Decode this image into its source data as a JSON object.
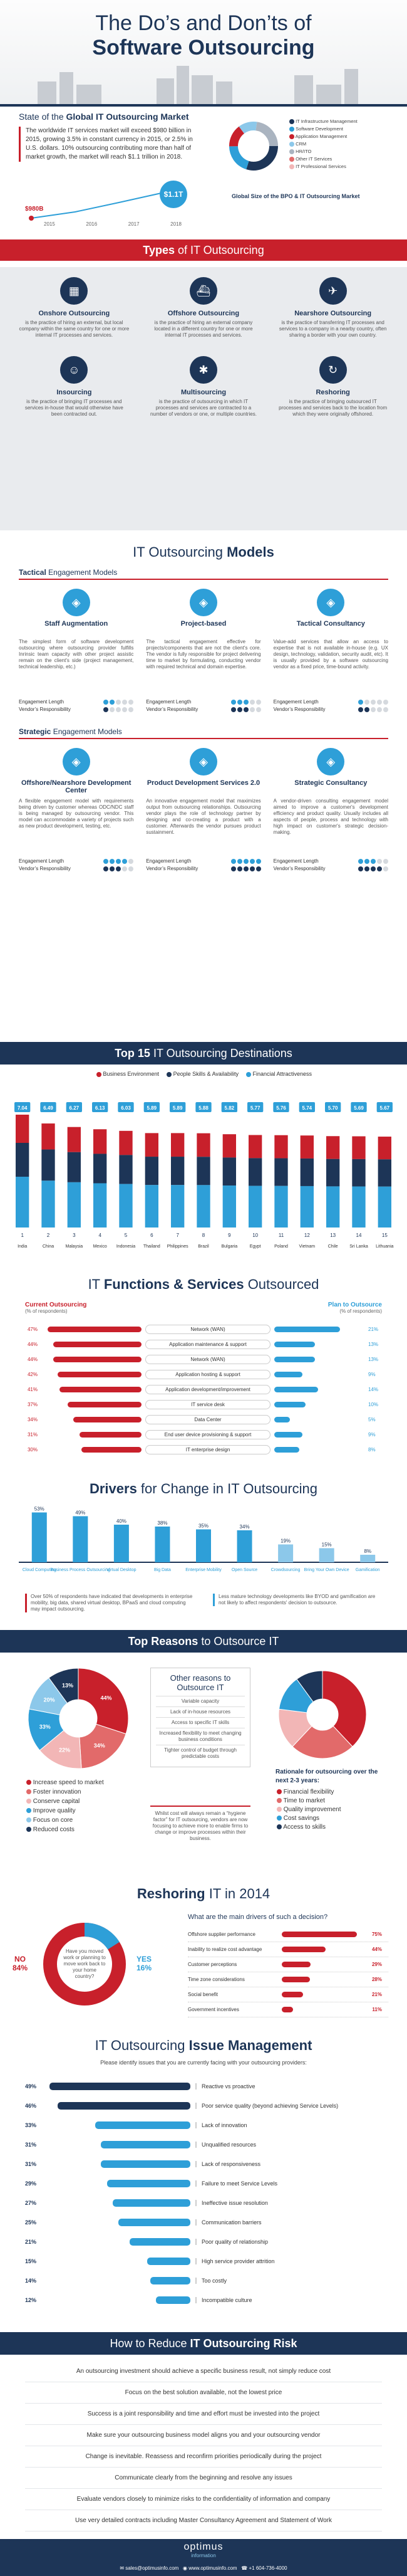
{
  "colors": {
    "red": "#c8202b",
    "navy": "#1d3557",
    "blue": "#2e9fd8",
    "grey": "#e9ebee"
  },
  "header": {
    "title_line1": "The Do’s and Don’ts of",
    "title_line2": "Software Outsourcing"
  },
  "market": {
    "title_pre": "State of the ",
    "title_bold": "Global IT Outsourcing Market",
    "text": "The worldwide IT services market will exceed $980 billion in 2015, growing 3.5% in constant currency in 2015, or 2.5% in U.S. dollars. 10% outsourcing contributing more than half of market growth, the market will reach $1.1 trillion in 2018.",
    "badge_big": "$1.1T",
    "badge_small": "$980B",
    "years": [
      "2015",
      "2016",
      "2017",
      "2018"
    ],
    "legend": [
      "IT Infrastructure Management",
      "Software Development",
      "Application Management",
      "CRM",
      "HR/ITO",
      "Other IT Services",
      "IT Professional Services"
    ],
    "legend_caption": "Global Size of the BPO & IT Outsourcing Market"
  },
  "types": {
    "title_bold": "Types",
    "title_rest": " of IT Outsourcing",
    "items": [
      {
        "name": "Onshore Outsourcing",
        "icon": "building-icon",
        "text": "is the practice of hiring an external, but local company within the same country for one or more internal IT processes and services."
      },
      {
        "name": "Offshore Outsourcing",
        "icon": "ship-icon",
        "text": "is the practice of hiring an external company located in a different country for one or more internal IT processes and services."
      },
      {
        "name": "Nearshore Outsourcing",
        "icon": "plane-icon",
        "text": "is the practice of transferring IT processes and services to a company in a nearby country, often sharing a border with your own country."
      },
      {
        "name": "Insourcing",
        "icon": "people-icon",
        "text": "is the practice of bringing IT processes and services in-house that would otherwise have been contracted out."
      },
      {
        "name": "Multisourcing",
        "icon": "network-icon",
        "text": "is the practice of outsourcing in which IT processes and services are contracted to a number of vendors or one, or multiple countries."
      },
      {
        "name": "Reshoring",
        "icon": "cycle-icon",
        "text": "is the practice of bringing outsourced IT processes and services back to the location from which they were originally offshored."
      }
    ]
  },
  "models": {
    "title_pre": "IT Outsourcing ",
    "title_bold": "Models",
    "tactical_label_bold": "Tactical",
    "tactical_label_rest": " Engagement Models",
    "strategic_label_bold": "Strategic",
    "strategic_label_rest": " Engagement Models",
    "eng_length": "Engagement Length",
    "vendor_resp": "Vendor’s Responsibility",
    "tactical": [
      {
        "name": "Staff Augmentation",
        "text": "The simplest form of software development outsourcing where outsourcing provider fulfills Inrinsic team capacity with other project assistic remain on the client's side (project management, technical leadership, etc.)",
        "len": 2,
        "resp": 1
      },
      {
        "name": "Project-based",
        "text": "The tactical engagement effective for projects/components that are not the client's core. The vendor is fully responsible for project delivering time to market by formulating, conducting vendor with required technical and domain expertise.",
        "len": 3,
        "resp": 3
      },
      {
        "name": "Tactical Consultancy",
        "text": "Value-add services that allow an access to expertise that is not available in-house (e.g. UX design, technology, validation, security audit, etc). It is usually provided by a software outsourcing vendor as a fixed price, time-bound activity.",
        "len": 1,
        "resp": 2
      }
    ],
    "strategic": [
      {
        "name": "Offshore/Nearshore Development Center",
        "text": "A flexible engagement model with requirements being driven by customer whereas ODC/NDC staff is being managed by outsourcing vendor. This model can accommodate a variety of projects such as new product development, testing, etc.",
        "len": 4,
        "resp": 3
      },
      {
        "name": "Product Development Services 2.0",
        "text": "An innovative engagement model that maximizes output from outsourcing relationships. Outsourcing vendor plays the role of technology partner by designing and co-creating a product with a customer. Afterwards the vendor pursues product sustainment.",
        "len": 5,
        "resp": 5
      },
      {
        "name": "Strategic Consultancy",
        "text": "A vendor-driven consulting engagement model aimed to improve a customer's development efficiency and product quality. Usually includes all aspects of people, process and technology with high impact on customer's strategic decision-making.",
        "len": 3,
        "resp": 4
      }
    ]
  },
  "destinations": {
    "title_bold": "Top 15",
    "title_rest": " IT Outsourcing Destinations",
    "legend": [
      "Business Environment",
      "People Skills & Availability",
      "Financial Attractiveness"
    ],
    "countries": [
      "India",
      "China",
      "Malaysia",
      "Mexico",
      "Indonesia",
      "Thailand",
      "Philippines",
      "Brazil",
      "Bulgaria",
      "Egypt",
      "Poland",
      "Vietnam",
      "Chile",
      "Sri Lanka",
      "Lithuania"
    ],
    "totals": [
      "7.04",
      "6.49",
      "6.27",
      "6.13",
      "6.03",
      "5.89",
      "5.89",
      "5.88",
      "5.82",
      "5.77",
      "5.76",
      "5.74",
      "5.70",
      "5.69",
      "5.67"
    ],
    "ranks": [
      "1",
      "2",
      "3",
      "4",
      "5",
      "6",
      "7",
      "8",
      "9",
      "10",
      "11",
      "12",
      "13",
      "14",
      "15"
    ]
  },
  "functions": {
    "title_pre": "IT ",
    "title_bold": "Functions & Services",
    "title_rest": " Outsourced",
    "left_head": "Current Outsourcing",
    "left_sub": "(% of respondents)",
    "right_head": "Plan to Outsource",
    "right_sub": "(% of respondents)",
    "items": [
      {
        "name": "Network (WAN)",
        "cur": 47,
        "plan": 21
      },
      {
        "name": "Application maintenance & support",
        "cur": 44,
        "plan": 13
      },
      {
        "name": "Network (WAN)",
        "cur": 44,
        "plan": 13
      },
      {
        "name": "Application hosting & support",
        "cur": 42,
        "plan": 9
      },
      {
        "name": "Application development/improvement",
        "cur": 41,
        "plan": 14
      },
      {
        "name": "IT service desk",
        "cur": 37,
        "plan": 10
      },
      {
        "name": "Data Center",
        "cur": 34,
        "plan": 5
      },
      {
        "name": "End user device provisioning & support",
        "cur": 31,
        "plan": 9
      },
      {
        "name": "IT enterprise design",
        "cur": 30,
        "plan": 8
      }
    ]
  },
  "drivers": {
    "title_bold": "Drivers",
    "title_rest": " for Change in IT Outsourcing",
    "labels": [
      "Cloud Computing",
      "Business Process Outsourcing",
      "Virtual Desktop",
      "Big Data",
      "Enterprise Mobility",
      "Open Source",
      "Crowdsourcing",
      "Bring Your Own Device",
      "Gamification"
    ],
    "values": [
      53,
      49,
      40,
      38,
      35,
      34,
      19,
      15,
      8
    ],
    "note_left": "Over 50% of respondents have indicated that developments in enterprise mobility, big data, shared virtual desktop, BPaaS and cloud computing may impact outsourcing.",
    "note_right": "Less mature technology developments like BYOD and gamification are not likely to affect respondents' decision to outsource."
  },
  "reasons": {
    "title_bold": "Top Reasons",
    "title_rest": " to Outsource IT",
    "legend": [
      "Increase speed to market",
      "Foster innovation",
      "Conserve capital",
      "Improve quality",
      "Focus on core",
      "Reduced costs"
    ],
    "pie_left": [
      {
        "v": 30,
        "c": "#c8202b"
      },
      {
        "v": 19,
        "c": "#e26a6a"
      },
      {
        "v": 15,
        "c": "#f2b6b6"
      },
      {
        "v": 14,
        "c": "#2e9fd8"
      },
      {
        "v": 12,
        "c": "#8cc8ea"
      },
      {
        "v": 10,
        "c": "#1d3557"
      }
    ],
    "pie_left_labels": [
      "44%",
      "34%",
      "22%",
      "33%",
      "20%",
      "13%"
    ],
    "other_title": "Other reasons to Outsource IT",
    "other_items": [
      "Variable capacity",
      "Lack of in-house resources",
      "Access to specific IT skills",
      "Increased flexibility to meet changing business conditions",
      "Tighter control of budget through predictable costs"
    ],
    "quote": "Whilst cost will always remain a “hygiene factor” for IT outsourcing, vendors are now focusing to achieve more to enable firms to change or improve processes within their business.",
    "pie_right": [
      {
        "v": 38,
        "c": "#c8202b"
      },
      {
        "v": 24,
        "c": "#e26a6a"
      },
      {
        "v": 15,
        "c": "#f2b6b6"
      },
      {
        "v": 13,
        "c": "#2e9fd8"
      },
      {
        "v": 10,
        "c": "#1d3557"
      }
    ],
    "right_caption": "Rationale for outsourcing over the next 2-3 years:",
    "right_legend": [
      "Financial flexibility",
      "Time to market",
      "Quality improvement",
      "Cost savings",
      "Access to skills"
    ]
  },
  "reshoring": {
    "title_bold": "Reshoring",
    "title_rest": " IT in 2014",
    "no_label": "NO",
    "no_value": "84%",
    "yes_label": "YES",
    "yes_value": "16%",
    "center_text": "Have you moved work or planning to move work back to your home country?",
    "drivers_title": "What are the main drivers of such a decision?",
    "drivers": [
      {
        "name": "Offshore supplier performance",
        "v": 75
      },
      {
        "name": "Inability to realize cost advantage",
        "v": 44
      },
      {
        "name": "Customer perceptions",
        "v": 29
      },
      {
        "name": "Time zone considerations",
        "v": 28
      },
      {
        "name": "Social benefit",
        "v": 21
      },
      {
        "name": "Government incentives",
        "v": 11
      }
    ]
  },
  "issues": {
    "title_pre": "IT Outsourcing ",
    "title_bold": "Issue Management",
    "intro": "Please identify issues that you are currently facing with your outsourcing providers:",
    "items": [
      {
        "name": "Reactive vs proactive",
        "v": 49
      },
      {
        "name": "Poor service quality (beyond achieving Service Levels)",
        "v": 46
      },
      {
        "name": "Lack of innovation",
        "v": 33
      },
      {
        "name": "Unqualified resources",
        "v": 31
      },
      {
        "name": "Lack of responsiveness",
        "v": 31
      },
      {
        "name": "Failure to meet Service Levels",
        "v": 29
      },
      {
        "name": "Ineffective issue resolution",
        "v": 27
      },
      {
        "name": "Communication barriers",
        "v": 25
      },
      {
        "name": "Poor quality of relationship",
        "v": 21
      },
      {
        "name": "High service provider attrition",
        "v": 15
      },
      {
        "name": "Too costly",
        "v": 14
      },
      {
        "name": "Incompatible culture",
        "v": 12
      }
    ]
  },
  "risk": {
    "title_pre": "How to Reduce ",
    "title_bold": "IT Outsourcing Risk",
    "lines": [
      "An outsourcing investment should achieve a specific business result, not simply reduce cost",
      "Focus on the best solution available, not the lowest price",
      "Success is a joint responsibility and time and effort must be invested into the project",
      "Make sure your outsourcing business model aligns you and your outsourcing vendor",
      "Change is inevitable. Reassess and reconfirm priorities periodically during the project",
      "Communicate clearly from the beginning and resolve any issues",
      "Evaluate vendors closely to minimize risks to the confidentiality of information and company",
      "Use very detailed contracts including Master Consultancy Agreement and Statement of Work"
    ]
  },
  "footer": {
    "logo_top": "optimus",
    "logo_bottom": "information",
    "email": "sales@optimusinfo.com",
    "site": "www.optimusinfo.com",
    "phone": "+1 604-736-4000"
  }
}
